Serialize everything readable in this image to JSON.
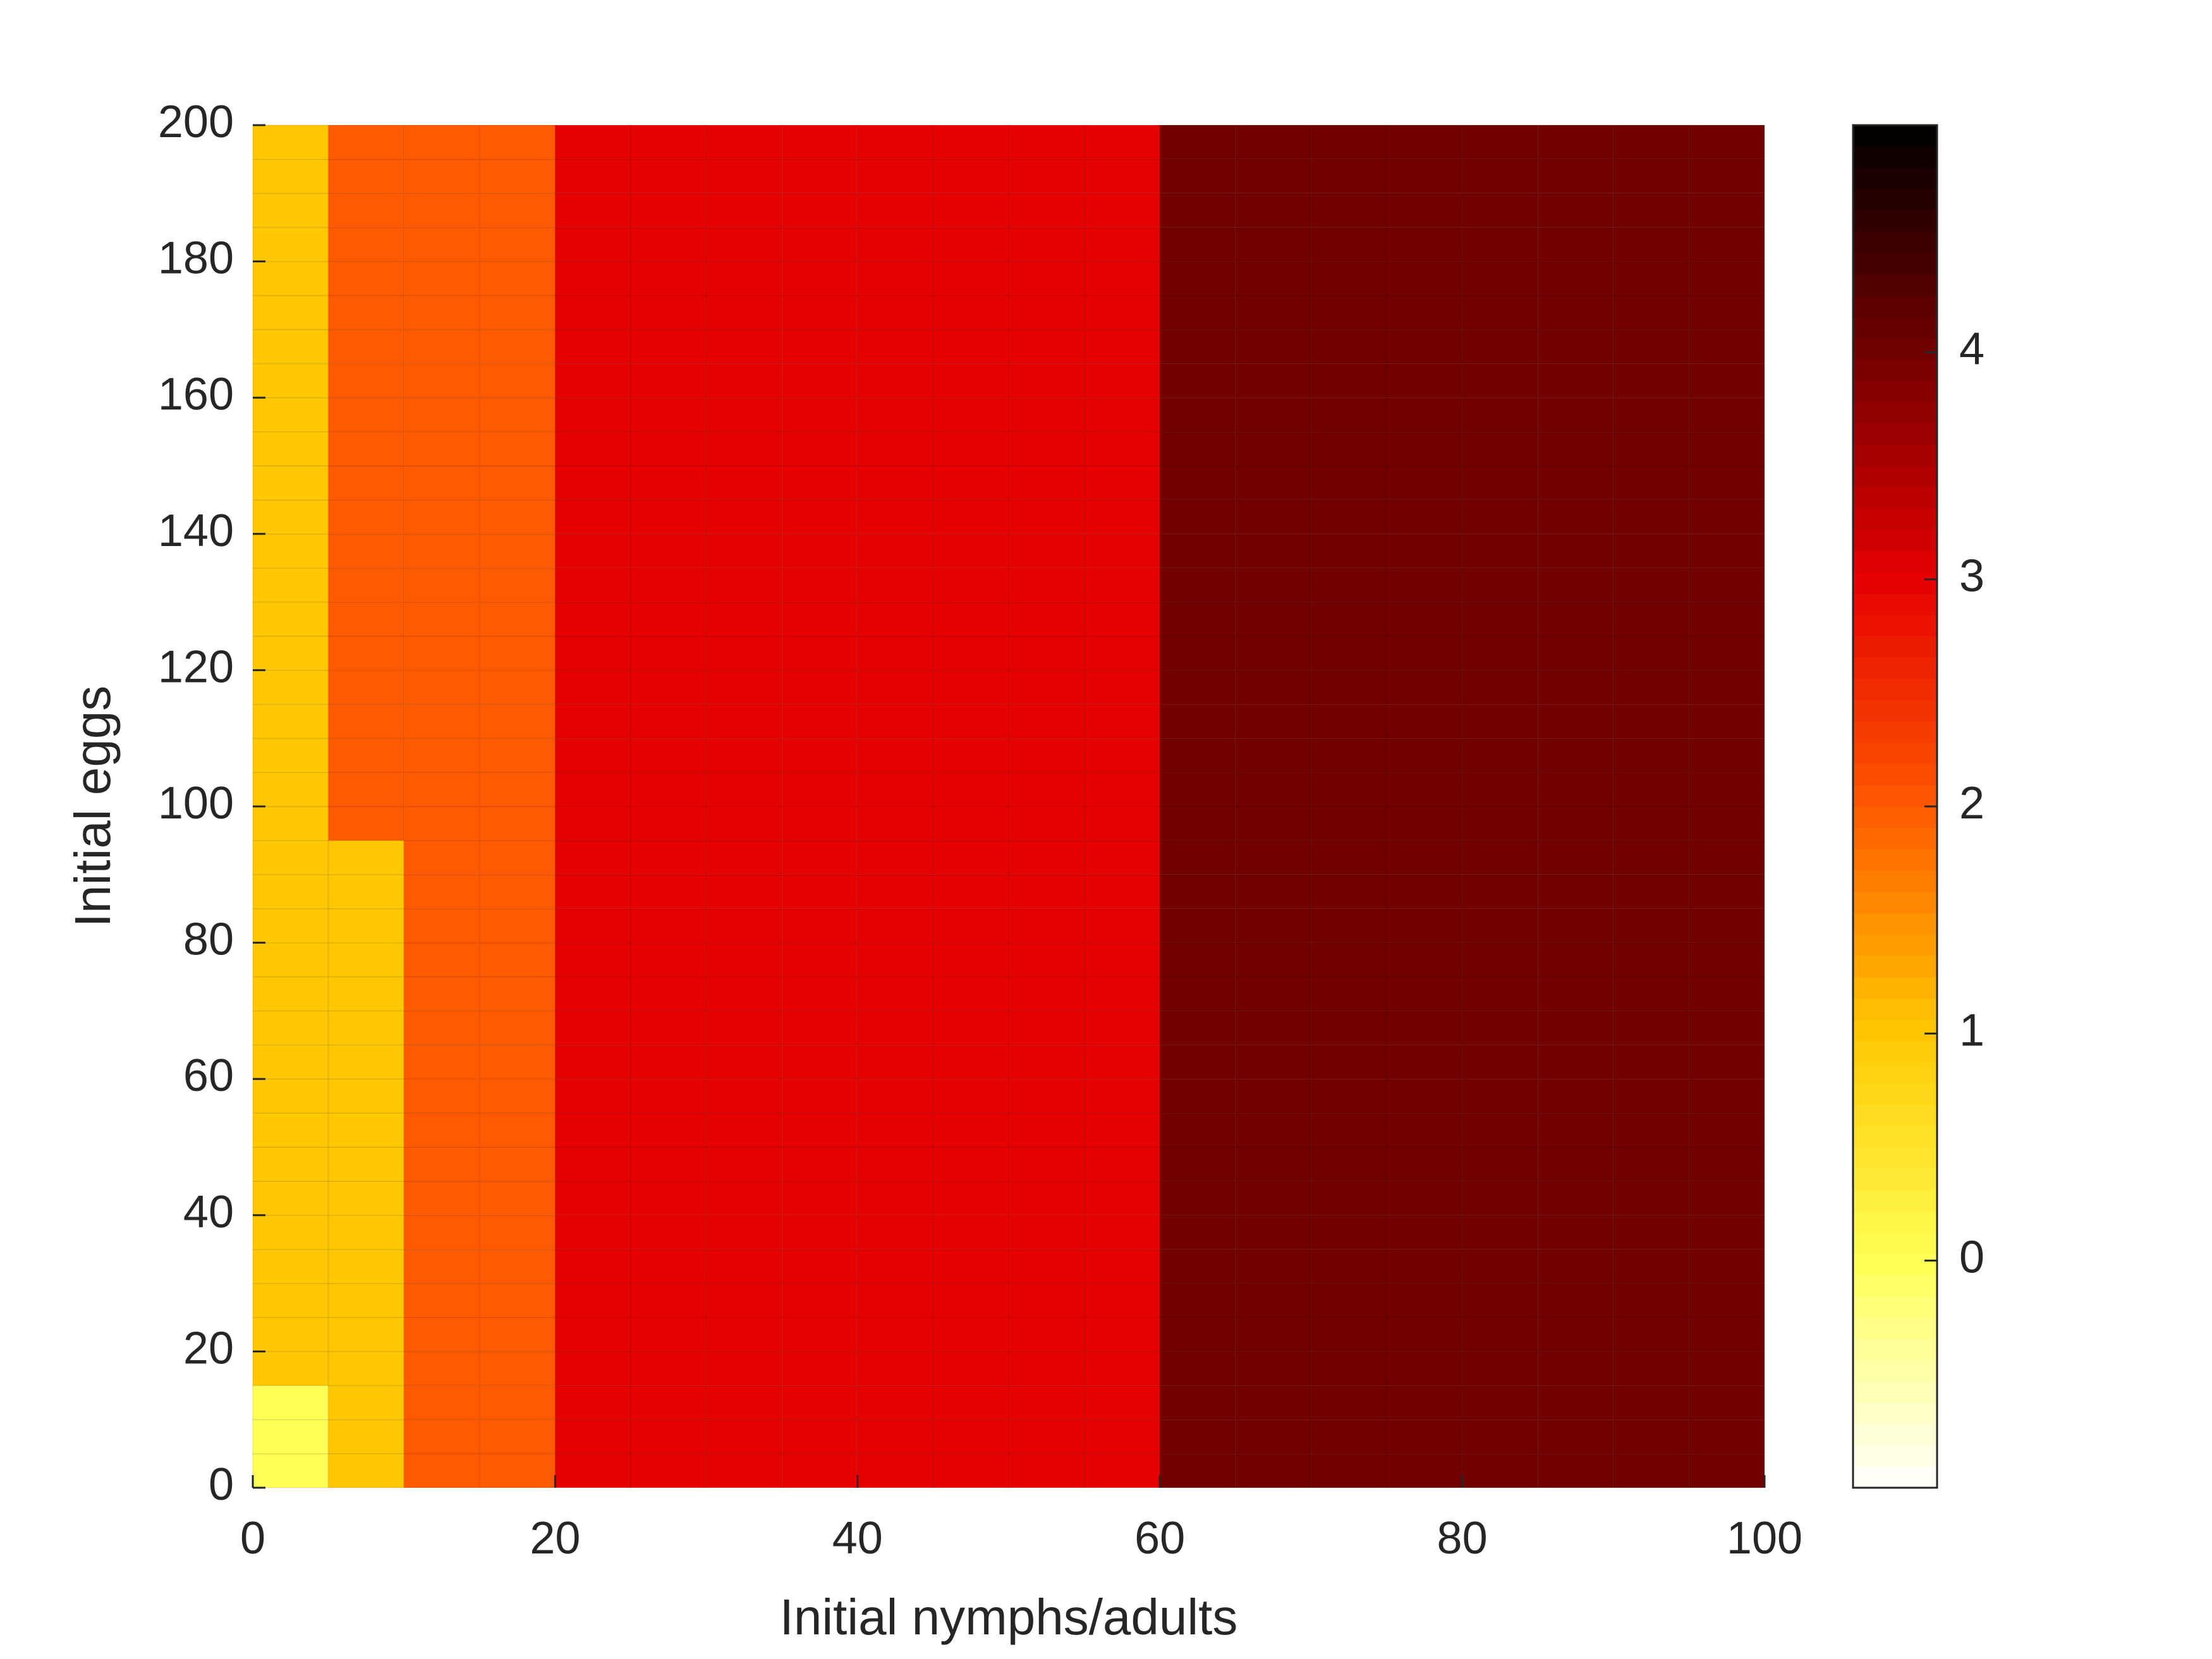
{
  "chart_data": {
    "type": "heatmap",
    "x_label": "Initial nymphs/adults",
    "y_label": "Initial eggs",
    "x": [
      0,
      5,
      10,
      15,
      20,
      25,
      30,
      35,
      40,
      45,
      50,
      55,
      60,
      65,
      70,
      75,
      80,
      85,
      90,
      95
    ],
    "y": [
      0,
      5,
      10,
      15,
      20,
      25,
      30,
      35,
      40,
      45,
      50,
      55,
      60,
      65,
      70,
      75,
      80,
      85,
      90,
      95,
      100,
      105,
      110,
      115,
      120,
      125,
      130,
      135,
      140,
      145,
      150,
      155,
      160,
      165,
      170,
      175,
      180,
      185,
      190,
      195
    ],
    "z": [
      [
        0,
        1,
        2,
        2,
        3,
        3,
        3,
        3,
        3,
        3,
        3,
        3,
        4,
        4,
        4,
        4,
        4,
        4,
        4,
        4
      ],
      [
        0,
        1,
        2,
        2,
        3,
        3,
        3,
        3,
        3,
        3,
        3,
        3,
        4,
        4,
        4,
        4,
        4,
        4,
        4,
        4
      ],
      [
        0,
        1,
        2,
        2,
        3,
        3,
        3,
        3,
        3,
        3,
        3,
        3,
        4,
        4,
        4,
        4,
        4,
        4,
        4,
        4
      ],
      [
        1,
        1,
        2,
        2,
        3,
        3,
        3,
        3,
        3,
        3,
        3,
        3,
        4,
        4,
        4,
        4,
        4,
        4,
        4,
        4
      ],
      [
        1,
        1,
        2,
        2,
        3,
        3,
        3,
        3,
        3,
        3,
        3,
        3,
        4,
        4,
        4,
        4,
        4,
        4,
        4,
        4
      ],
      [
        1,
        1,
        2,
        2,
        3,
        3,
        3,
        3,
        3,
        3,
        3,
        3,
        4,
        4,
        4,
        4,
        4,
        4,
        4,
        4
      ],
      [
        1,
        1,
        2,
        2,
        3,
        3,
        3,
        3,
        3,
        3,
        3,
        3,
        4,
        4,
        4,
        4,
        4,
        4,
        4,
        4
      ],
      [
        1,
        1,
        2,
        2,
        3,
        3,
        3,
        3,
        3,
        3,
        3,
        3,
        4,
        4,
        4,
        4,
        4,
        4,
        4,
        4
      ],
      [
        1,
        1,
        2,
        2,
        3,
        3,
        3,
        3,
        3,
        3,
        3,
        3,
        4,
        4,
        4,
        4,
        4,
        4,
        4,
        4
      ],
      [
        1,
        1,
        2,
        2,
        3,
        3,
        3,
        3,
        3,
        3,
        3,
        3,
        4,
        4,
        4,
        4,
        4,
        4,
        4,
        4
      ],
      [
        1,
        1,
        2,
        2,
        3,
        3,
        3,
        3,
        3,
        3,
        3,
        3,
        4,
        4,
        4,
        4,
        4,
        4,
        4,
        4
      ],
      [
        1,
        1,
        2,
        2,
        3,
        3,
        3,
        3,
        3,
        3,
        3,
        3,
        4,
        4,
        4,
        4,
        4,
        4,
        4,
        4
      ],
      [
        1,
        1,
        2,
        2,
        3,
        3,
        3,
        3,
        3,
        3,
        3,
        3,
        4,
        4,
        4,
        4,
        4,
        4,
        4,
        4
      ],
      [
        1,
        1,
        2,
        2,
        3,
        3,
        3,
        3,
        3,
        3,
        3,
        3,
        4,
        4,
        4,
        4,
        4,
        4,
        4,
        4
      ],
      [
        1,
        1,
        2,
        2,
        3,
        3,
        3,
        3,
        3,
        3,
        3,
        3,
        4,
        4,
        4,
        4,
        4,
        4,
        4,
        4
      ],
      [
        1,
        1,
        2,
        2,
        3,
        3,
        3,
        3,
        3,
        3,
        3,
        3,
        4,
        4,
        4,
        4,
        4,
        4,
        4,
        4
      ],
      [
        1,
        1,
        2,
        2,
        3,
        3,
        3,
        3,
        3,
        3,
        3,
        3,
        4,
        4,
        4,
        4,
        4,
        4,
        4,
        4
      ],
      [
        1,
        1,
        2,
        2,
        3,
        3,
        3,
        3,
        3,
        3,
        3,
        3,
        4,
        4,
        4,
        4,
        4,
        4,
        4,
        4
      ],
      [
        1,
        1,
        2,
        2,
        3,
        3,
        3,
        3,
        3,
        3,
        3,
        3,
        4,
        4,
        4,
        4,
        4,
        4,
        4,
        4
      ],
      [
        1,
        2,
        2,
        2,
        3,
        3,
        3,
        3,
        3,
        3,
        3,
        3,
        4,
        4,
        4,
        4,
        4,
        4,
        4,
        4
      ],
      [
        1,
        2,
        2,
        2,
        3,
        3,
        3,
        3,
        3,
        3,
        3,
        3,
        4,
        4,
        4,
        4,
        4,
        4,
        4,
        4
      ],
      [
        1,
        2,
        2,
        2,
        3,
        3,
        3,
        3,
        3,
        3,
        3,
        3,
        4,
        4,
        4,
        4,
        4,
        4,
        4,
        4
      ],
      [
        1,
        2,
        2,
        2,
        3,
        3,
        3,
        3,
        3,
        3,
        3,
        3,
        4,
        4,
        4,
        4,
        4,
        4,
        4,
        4
      ],
      [
        1,
        2,
        2,
        2,
        3,
        3,
        3,
        3,
        3,
        3,
        3,
        3,
        4,
        4,
        4,
        4,
        4,
        4,
        4,
        4
      ],
      [
        1,
        2,
        2,
        2,
        3,
        3,
        3,
        3,
        3,
        3,
        3,
        3,
        4,
        4,
        4,
        4,
        4,
        4,
        4,
        4
      ],
      [
        1,
        2,
        2,
        2,
        3,
        3,
        3,
        3,
        3,
        3,
        3,
        3,
        4,
        4,
        4,
        4,
        4,
        4,
        4,
        4
      ],
      [
        1,
        2,
        2,
        2,
        3,
        3,
        3,
        3,
        3,
        3,
        3,
        3,
        4,
        4,
        4,
        4,
        4,
        4,
        4,
        4
      ],
      [
        1,
        2,
        2,
        2,
        3,
        3,
        3,
        3,
        3,
        3,
        3,
        3,
        4,
        4,
        4,
        4,
        4,
        4,
        4,
        4
      ],
      [
        1,
        2,
        2,
        2,
        3,
        3,
        3,
        3,
        3,
        3,
        3,
        3,
        4,
        4,
        4,
        4,
        4,
        4,
        4,
        4
      ],
      [
        1,
        2,
        2,
        2,
        3,
        3,
        3,
        3,
        3,
        3,
        3,
        3,
        4,
        4,
        4,
        4,
        4,
        4,
        4,
        4
      ],
      [
        1,
        2,
        2,
        2,
        3,
        3,
        3,
        3,
        3,
        3,
        3,
        3,
        4,
        4,
        4,
        4,
        4,
        4,
        4,
        4
      ],
      [
        1,
        2,
        2,
        2,
        3,
        3,
        3,
        3,
        3,
        3,
        3,
        3,
        4,
        4,
        4,
        4,
        4,
        4,
        4,
        4
      ],
      [
        1,
        2,
        2,
        2,
        3,
        3,
        3,
        3,
        3,
        3,
        3,
        3,
        4,
        4,
        4,
        4,
        4,
        4,
        4,
        4
      ],
      [
        1,
        2,
        2,
        2,
        3,
        3,
        3,
        3,
        3,
        3,
        3,
        3,
        4,
        4,
        4,
        4,
        4,
        4,
        4,
        4
      ],
      [
        1,
        2,
        2,
        2,
        3,
        3,
        3,
        3,
        3,
        3,
        3,
        3,
        4,
        4,
        4,
        4,
        4,
        4,
        4,
        4
      ],
      [
        1,
        2,
        2,
        2,
        3,
        3,
        3,
        3,
        3,
        3,
        3,
        3,
        4,
        4,
        4,
        4,
        4,
        4,
        4,
        4
      ],
      [
        1,
        2,
        2,
        2,
        3,
        3,
        3,
        3,
        3,
        3,
        3,
        3,
        4,
        4,
        4,
        4,
        4,
        4,
        4,
        4
      ],
      [
        1,
        2,
        2,
        2,
        3,
        3,
        3,
        3,
        3,
        3,
        3,
        3,
        4,
        4,
        4,
        4,
        4,
        4,
        4,
        4
      ],
      [
        1,
        2,
        2,
        2,
        3,
        3,
        3,
        3,
        3,
        3,
        3,
        3,
        4,
        4,
        4,
        4,
        4,
        4,
        4,
        4
      ],
      [
        1,
        2,
        2,
        2,
        3,
        3,
        3,
        3,
        3,
        3,
        3,
        3,
        4,
        4,
        4,
        4,
        4,
        4,
        4,
        4
      ]
    ],
    "xlim": [
      0,
      100
    ],
    "xticks": [
      0,
      20,
      40,
      60,
      80,
      100
    ],
    "ylim": [
      0,
      200
    ],
    "yticks": [
      0,
      20,
      40,
      60,
      80,
      100,
      120,
      140,
      160,
      180,
      200
    ],
    "clim": [
      -1,
      5
    ],
    "cticks": [
      0,
      1,
      2,
      3,
      4
    ],
    "colormap": [
      "#ffffff",
      "#ffff55",
      "#ffc800",
      "#ff5a00",
      "#e60000",
      "#730000",
      "#000000"
    ]
  }
}
